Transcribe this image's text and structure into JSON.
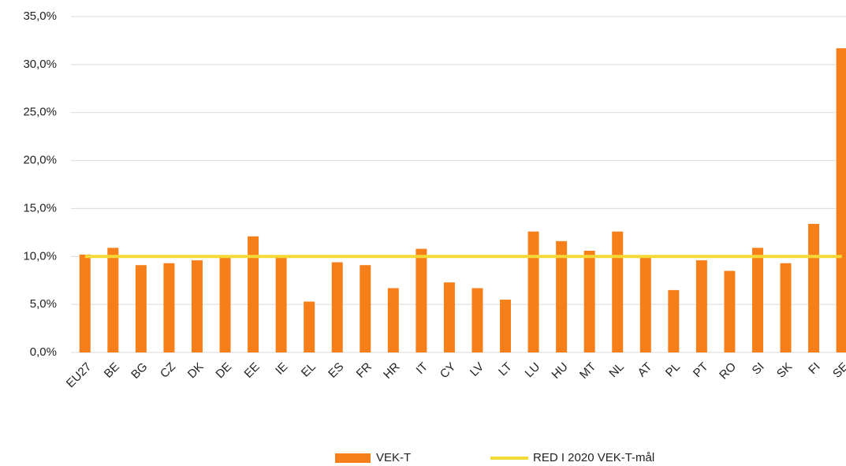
{
  "chart_data": {
    "type": "bar",
    "categories": [
      "EU27",
      "BE",
      "BG",
      "CZ",
      "DK",
      "DE",
      "EE",
      "IE",
      "EL",
      "ES",
      "FR",
      "HR",
      "IT",
      "CY",
      "LV",
      "LT",
      "LU",
      "HU",
      "MT",
      "NL",
      "AT",
      "PL",
      "PT",
      "RO",
      "SI",
      "SK",
      "FI",
      "SE"
    ],
    "series": [
      {
        "name": "VEK-T",
        "type": "bar",
        "color": "#f77f1a",
        "values": [
          10.2,
          10.9,
          9.1,
          9.3,
          9.6,
          10.1,
          12.1,
          10.0,
          5.3,
          9.4,
          9.1,
          6.7,
          10.8,
          7.3,
          6.7,
          5.5,
          12.6,
          11.6,
          10.6,
          12.6,
          10.1,
          6.5,
          9.6,
          8.5,
          10.9,
          9.3,
          13.4,
          31.7
        ]
      },
      {
        "name": "RED I 2020 VEK-T-mål",
        "type": "line",
        "color": "#f5d937",
        "values": [
          10,
          10,
          10,
          10,
          10,
          10,
          10,
          10,
          10,
          10,
          10,
          10,
          10,
          10,
          10,
          10,
          10,
          10,
          10,
          10,
          10,
          10,
          10,
          10,
          10,
          10,
          10,
          10
        ]
      }
    ],
    "ylim": [
      0,
      35
    ],
    "yticks": [
      {
        "value": 0,
        "label": "0,0%"
      },
      {
        "value": 5,
        "label": "5,0%"
      },
      {
        "value": 10,
        "label": "10,0%"
      },
      {
        "value": 15,
        "label": "15,0%"
      },
      {
        "value": 20,
        "label": "20,0%"
      },
      {
        "value": 25,
        "label": "25,0%"
      },
      {
        "value": 30,
        "label": "30,0%"
      },
      {
        "value": 35,
        "label": "35,0%"
      }
    ],
    "grid": true,
    "legend": "bottom"
  }
}
